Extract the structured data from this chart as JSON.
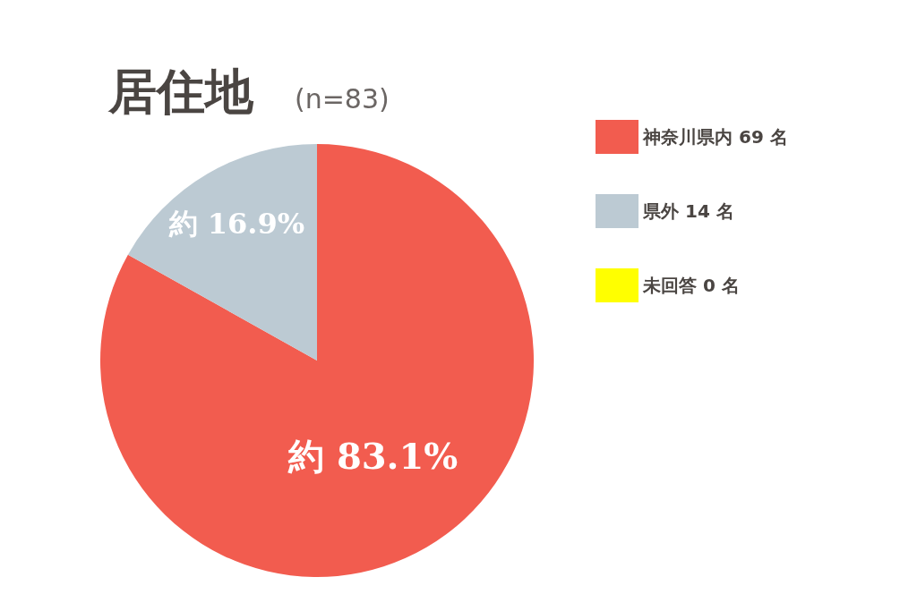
{
  "chart_data": {
    "type": "pie",
    "title": "居住地",
    "subtitle": "(n=83)",
    "categories": [
      "神奈川県内 69 名",
      "県外 14 名",
      "未回答 0 名"
    ],
    "values": [
      69,
      14,
      0
    ],
    "colors": [
      "#f25c4f",
      "#bccad3",
      "#ffff00"
    ],
    "value_labels": [
      "約 83.1%",
      "約 16.9%",
      null
    ],
    "legend": "top right"
  }
}
